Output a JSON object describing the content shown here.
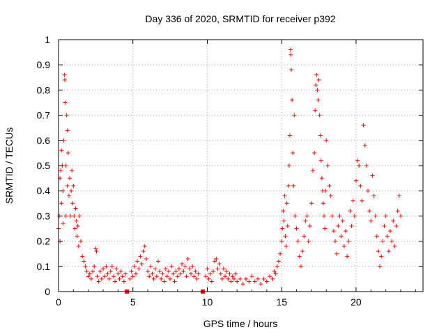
{
  "chart_data": {
    "type": "scatter",
    "title": "Day 336 of 2020, SRMTID for receiver p392",
    "xlabel": "GPS time / hours",
    "ylabel": "SRMTID / TECUs",
    "xlim": [
      0,
      24.5
    ],
    "ylim": [
      0,
      1
    ],
    "xticks": [
      0,
      5,
      10,
      15,
      20
    ],
    "xtick_labels": [
      "0",
      "5",
      "10",
      "15",
      "20"
    ],
    "yticks": [
      0,
      0.1,
      0.2,
      0.3,
      0.4,
      0.5,
      0.6,
      0.7,
      0.8,
      0.9,
      1
    ],
    "ytick_labels": [
      "0",
      "0.1",
      "0.2",
      "0.3",
      "0.4",
      "0.5",
      "0.6",
      "0.7",
      "0.8",
      "0.9",
      "1"
    ],
    "grid": true,
    "marker": "plus",
    "color": "#ff0000",
    "data_gaps_x": [
      4.6,
      9.7
    ],
    "series": [
      {
        "name": "SRMTID",
        "points": [
          [
            0.0,
            0.25
          ],
          [
            0.05,
            0.3
          ],
          [
            0.1,
            0.45
          ],
          [
            0.1,
            0.2
          ],
          [
            0.15,
            0.48
          ],
          [
            0.2,
            0.56
          ],
          [
            0.2,
            0.35
          ],
          [
            0.25,
            0.5
          ],
          [
            0.3,
            0.4
          ],
          [
            0.3,
            0.27
          ],
          [
            0.35,
            0.6
          ],
          [
            0.4,
            0.86
          ],
          [
            0.42,
            0.84
          ],
          [
            0.45,
            0.75
          ],
          [
            0.5,
            0.5
          ],
          [
            0.5,
            0.3
          ],
          [
            0.55,
            0.7
          ],
          [
            0.6,
            0.64
          ],
          [
            0.6,
            0.42
          ],
          [
            0.65,
            0.55
          ],
          [
            0.7,
            0.38
          ],
          [
            0.75,
            0.45
          ],
          [
            0.8,
            0.3
          ],
          [
            0.85,
            0.4
          ],
          [
            0.9,
            0.48
          ],
          [
            0.95,
            0.35
          ],
          [
            1.0,
            0.42
          ],
          [
            1.05,
            0.3
          ],
          [
            1.1,
            0.25
          ],
          [
            1.15,
            0.33
          ],
          [
            1.2,
            0.28
          ],
          [
            1.25,
            0.22
          ],
          [
            1.3,
            0.26
          ],
          [
            1.35,
            0.18
          ],
          [
            1.4,
            0.3
          ],
          [
            1.5,
            0.2
          ],
          [
            1.6,
            0.14
          ],
          [
            1.7,
            0.12
          ],
          [
            1.8,
            0.1
          ],
          [
            1.9,
            0.08
          ],
          [
            2.0,
            0.06
          ],
          [
            2.1,
            0.07
          ],
          [
            2.2,
            0.05
          ],
          [
            2.3,
            0.08
          ],
          [
            2.4,
            0.1
          ],
          [
            2.5,
            0.17
          ],
          [
            2.55,
            0.16
          ],
          [
            2.6,
            0.06
          ],
          [
            2.7,
            0.04
          ],
          [
            2.8,
            0.08
          ],
          [
            2.9,
            0.05
          ],
          [
            3.0,
            0.09
          ],
          [
            3.1,
            0.06
          ],
          [
            3.2,
            0.1
          ],
          [
            3.3,
            0.07
          ],
          [
            3.4,
            0.05
          ],
          [
            3.5,
            0.08
          ],
          [
            3.6,
            0.1
          ],
          [
            3.7,
            0.06
          ],
          [
            3.8,
            0.04
          ],
          [
            3.9,
            0.09
          ],
          [
            4.0,
            0.07
          ],
          [
            4.1,
            0.05
          ],
          [
            4.2,
            0.08
          ],
          [
            4.3,
            0.06
          ],
          [
            4.4,
            0.04
          ],
          [
            4.5,
            0.07
          ],
          [
            4.8,
            0.05
          ],
          [
            4.9,
            0.08
          ],
          [
            5.0,
            0.06
          ],
          [
            5.1,
            0.1
          ],
          [
            5.2,
            0.07
          ],
          [
            5.3,
            0.12
          ],
          [
            5.4,
            0.09
          ],
          [
            5.5,
            0.14
          ],
          [
            5.6,
            0.11
          ],
          [
            5.7,
            0.16
          ],
          [
            5.8,
            0.18
          ],
          [
            5.9,
            0.13
          ],
          [
            6.0,
            0.08
          ],
          [
            6.1,
            0.06
          ],
          [
            6.2,
            0.1
          ],
          [
            6.3,
            0.07
          ],
          [
            6.4,
            0.05
          ],
          [
            6.5,
            0.09
          ],
          [
            6.6,
            0.06
          ],
          [
            6.7,
            0.12
          ],
          [
            6.8,
            0.08
          ],
          [
            6.9,
            0.05
          ],
          [
            7.0,
            0.07
          ],
          [
            7.1,
            0.04
          ],
          [
            7.2,
            0.09
          ],
          [
            7.3,
            0.06
          ],
          [
            7.4,
            0.08
          ],
          [
            7.5,
            0.05
          ],
          [
            7.6,
            0.1
          ],
          [
            7.7,
            0.07
          ],
          [
            7.8,
            0.04
          ],
          [
            7.9,
            0.08
          ],
          [
            8.0,
            0.06
          ],
          [
            8.1,
            0.09
          ],
          [
            8.2,
            0.07
          ],
          [
            8.3,
            0.11
          ],
          [
            8.4,
            0.08
          ],
          [
            8.5,
            0.1
          ],
          [
            8.6,
            0.06
          ],
          [
            8.7,
            0.13
          ],
          [
            8.8,
            0.09
          ],
          [
            8.9,
            0.07
          ],
          [
            9.0,
            0.1
          ],
          [
            9.1,
            0.06
          ],
          [
            9.2,
            0.08
          ],
          [
            9.3,
            0.05
          ],
          [
            9.4,
            0.07
          ],
          [
            9.9,
            0.06
          ],
          [
            10.0,
            0.09
          ],
          [
            10.1,
            0.05
          ],
          [
            10.2,
            0.07
          ],
          [
            10.3,
            0.04
          ],
          [
            10.4,
            0.08
          ],
          [
            10.5,
            0.12
          ],
          [
            10.6,
            0.13
          ],
          [
            10.7,
            0.09
          ],
          [
            10.8,
            0.11
          ],
          [
            10.9,
            0.07
          ],
          [
            11.0,
            0.05
          ],
          [
            11.1,
            0.09
          ],
          [
            11.2,
            0.06
          ],
          [
            11.3,
            0.08
          ],
          [
            11.4,
            0.05
          ],
          [
            11.5,
            0.07
          ],
          [
            11.6,
            0.04
          ],
          [
            11.7,
            0.06
          ],
          [
            11.8,
            0.05
          ],
          [
            11.9,
            0.07
          ],
          [
            12.0,
            0.04
          ],
          [
            12.2,
            0.05
          ],
          [
            12.4,
            0.03
          ],
          [
            12.6,
            0.05
          ],
          [
            12.8,
            0.04
          ],
          [
            13.0,
            0.06
          ],
          [
            13.2,
            0.04
          ],
          [
            13.4,
            0.05
          ],
          [
            13.6,
            0.03
          ],
          [
            13.8,
            0.05
          ],
          [
            14.0,
            0.04
          ],
          [
            14.2,
            0.06
          ],
          [
            14.4,
            0.05
          ],
          [
            14.5,
            0.08
          ],
          [
            14.6,
            0.07
          ],
          [
            14.7,
            0.1
          ],
          [
            14.8,
            0.12
          ],
          [
            14.9,
            0.15
          ],
          [
            15.0,
            0.2
          ],
          [
            15.05,
            0.25
          ],
          [
            15.1,
            0.32
          ],
          [
            15.15,
            0.28
          ],
          [
            15.2,
            0.38
          ],
          [
            15.25,
            0.22
          ],
          [
            15.3,
            0.18
          ],
          [
            15.35,
            0.35
          ],
          [
            15.4,
            0.26
          ],
          [
            15.45,
            0.42
          ],
          [
            15.5,
            0.5
          ],
          [
            15.55,
            0.62
          ],
          [
            15.6,
            0.96
          ],
          [
            15.62,
            0.94
          ],
          [
            15.65,
            0.88
          ],
          [
            15.7,
            0.76
          ],
          [
            15.75,
            0.55
          ],
          [
            15.8,
            0.42
          ],
          [
            15.85,
            0.7
          ],
          [
            15.9,
            0.3
          ],
          [
            16.0,
            0.25
          ],
          [
            16.1,
            0.2
          ],
          [
            16.2,
            0.14
          ],
          [
            16.3,
            0.1
          ],
          [
            16.4,
            0.16
          ],
          [
            16.5,
            0.22
          ],
          [
            16.6,
            0.28
          ],
          [
            16.7,
            0.3
          ],
          [
            16.8,
            0.2
          ],
          [
            16.9,
            0.26
          ],
          [
            17.0,
            0.35
          ],
          [
            17.1,
            0.48
          ],
          [
            17.2,
            0.55
          ],
          [
            17.25,
            0.72
          ],
          [
            17.3,
            0.82
          ],
          [
            17.35,
            0.86
          ],
          [
            17.4,
            0.8
          ],
          [
            17.45,
            0.76
          ],
          [
            17.5,
            0.84
          ],
          [
            17.55,
            0.7
          ],
          [
            17.6,
            0.62
          ],
          [
            17.65,
            0.52
          ],
          [
            17.7,
            0.45
          ],
          [
            17.75,
            0.4
          ],
          [
            17.8,
            0.35
          ],
          [
            17.85,
            0.3
          ],
          [
            17.9,
            0.25
          ],
          [
            17.95,
            0.4
          ],
          [
            18.0,
            0.6
          ],
          [
            18.1,
            0.5
          ],
          [
            18.2,
            0.42
          ],
          [
            18.3,
            0.38
          ],
          [
            18.4,
            0.3
          ],
          [
            18.5,
            0.24
          ],
          [
            18.6,
            0.2
          ],
          [
            18.7,
            0.15
          ],
          [
            18.8,
            0.26
          ],
          [
            18.9,
            0.3
          ],
          [
            19.0,
            0.22
          ],
          [
            19.1,
            0.28
          ],
          [
            19.2,
            0.18
          ],
          [
            19.3,
            0.24
          ],
          [
            19.4,
            0.14
          ],
          [
            19.5,
            0.2
          ],
          [
            19.6,
            0.32
          ],
          [
            19.7,
            0.26
          ],
          [
            19.8,
            0.36
          ],
          [
            19.9,
            0.3
          ],
          [
            20.0,
            0.44
          ],
          [
            20.1,
            0.52
          ],
          [
            20.2,
            0.5
          ],
          [
            20.3,
            0.42
          ],
          [
            20.4,
            0.36
          ],
          [
            20.5,
            0.66
          ],
          [
            20.6,
            0.58
          ],
          [
            20.7,
            0.5
          ],
          [
            20.8,
            0.4
          ],
          [
            20.9,
            0.32
          ],
          [
            21.0,
            0.28
          ],
          [
            21.1,
            0.46
          ],
          [
            21.2,
            0.38
          ],
          [
            21.3,
            0.3
          ],
          [
            21.4,
            0.22
          ],
          [
            21.5,
            0.16
          ],
          [
            21.6,
            0.1
          ],
          [
            21.7,
            0.14
          ],
          [
            21.8,
            0.2
          ],
          [
            21.9,
            0.26
          ],
          [
            22.0,
            0.3
          ],
          [
            22.1,
            0.22
          ],
          [
            22.2,
            0.16
          ],
          [
            22.3,
            0.24
          ],
          [
            22.4,
            0.2
          ],
          [
            22.5,
            0.28
          ],
          [
            22.6,
            0.18
          ],
          [
            22.7,
            0.26
          ],
          [
            22.8,
            0.32
          ],
          [
            22.9,
            0.38
          ],
          [
            23.0,
            0.3
          ]
        ]
      }
    ]
  }
}
